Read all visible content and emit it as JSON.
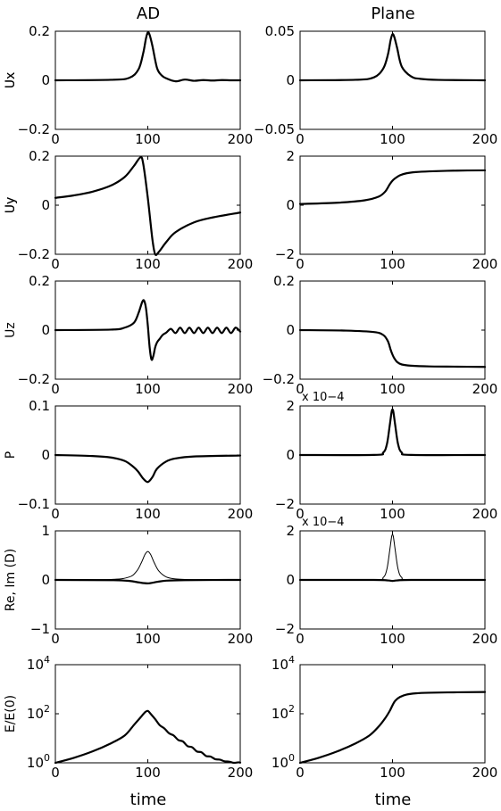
{
  "columns": [
    "AD",
    "Plane"
  ],
  "xlabel": "time",
  "chart_data": [
    {
      "type": "line",
      "panel": "AD",
      "ylabel": "Ux",
      "xlim": [
        0,
        200
      ],
      "ylim": [
        -0.2,
        0.2
      ],
      "xticks": [
        "0",
        "100",
        "200"
      ],
      "yticks": [
        "0.2",
        "0",
        "−0.2"
      ],
      "series": [
        {
          "x": [
            0,
            60,
            80,
            90,
            95,
            98,
            100,
            102,
            105,
            110,
            115,
            120,
            130,
            140,
            150,
            160,
            170,
            180,
            190,
            200
          ],
          "y": [
            0,
            0.002,
            0.01,
            0.045,
            0.11,
            0.17,
            0.195,
            0.185,
            0.14,
            0.05,
            0.02,
            0.008,
            -0.004,
            0.003,
            -0.002,
            0.001,
            -0.001,
            0.001,
            0,
            0
          ]
        }
      ]
    },
    {
      "type": "line",
      "panel": "Plane",
      "ylabel": "Ux",
      "xlim": [
        0,
        200
      ],
      "ylim": [
        -0.05,
        0.05
      ],
      "xticks": [
        "0",
        "100",
        "200"
      ],
      "yticks": [
        "0.05",
        "0",
        "−0.05"
      ],
      "series": [
        {
          "x": [
            0,
            60,
            80,
            90,
            95,
            98,
            100,
            102,
            105,
            110,
            120,
            130,
            150,
            200
          ],
          "y": [
            0,
            0.0005,
            0.003,
            0.012,
            0.026,
            0.041,
            0.047,
            0.044,
            0.033,
            0.014,
            0.004,
            0.0015,
            0.0004,
            0
          ]
        }
      ]
    },
    {
      "type": "line",
      "panel": "AD",
      "ylabel": "Uy",
      "xlim": [
        0,
        200
      ],
      "ylim": [
        -0.2,
        0.2
      ],
      "xticks": [
        "0",
        "100",
        "200"
      ],
      "yticks": [
        "0.2",
        "0",
        "−0.2"
      ],
      "series": [
        {
          "x": [
            0,
            20,
            40,
            60,
            75,
            85,
            92,
            95,
            100,
            105,
            108,
            112,
            120,
            130,
            150,
            170,
            200
          ],
          "y": [
            0.03,
            0.04,
            0.055,
            0.08,
            0.115,
            0.16,
            0.195,
            0.17,
            0.03,
            -0.14,
            -0.2,
            -0.19,
            -0.15,
            -0.11,
            -0.07,
            -0.05,
            -0.03
          ]
        }
      ]
    },
    {
      "type": "line",
      "panel": "Plane",
      "ylabel": "Uy",
      "xlim": [
        0,
        200
      ],
      "ylim": [
        -2,
        2
      ],
      "xticks": [
        "0",
        "100",
        "200"
      ],
      "yticks": [
        "2",
        "0",
        "−2"
      ],
      "series": [
        {
          "x": [
            0,
            40,
            70,
            85,
            92,
            97,
            100,
            103,
            108,
            115,
            125,
            140,
            170,
            200
          ],
          "y": [
            0.05,
            0.1,
            0.2,
            0.35,
            0.55,
            0.85,
            1.0,
            1.1,
            1.22,
            1.3,
            1.35,
            1.38,
            1.41,
            1.42
          ]
        }
      ]
    },
    {
      "type": "line",
      "panel": "AD",
      "ylabel": "Uz",
      "xlim": [
        0,
        200
      ],
      "ylim": [
        -0.2,
        0.2
      ],
      "xticks": [
        "0",
        "100",
        "200"
      ],
      "yticks": [
        "0.2",
        "0",
        "−0.2"
      ],
      "series": [
        {
          "x": [
            0,
            60,
            75,
            85,
            90,
            94,
            96,
            98,
            100,
            102,
            104,
            106,
            108,
            110,
            113,
            116,
            120,
            125,
            130,
            135,
            140,
            145,
            150,
            155,
            160,
            165,
            170,
            175,
            180,
            185,
            190,
            195,
            200
          ],
          "y": [
            0,
            0.002,
            0.01,
            0.03,
            0.07,
            0.115,
            0.12,
            0.09,
            0.02,
            -0.07,
            -0.12,
            -0.105,
            -0.07,
            -0.05,
            -0.035,
            -0.02,
            -0.01,
            0.005,
            -0.012,
            0.01,
            -0.012,
            0.01,
            -0.012,
            0.01,
            -0.012,
            0.01,
            -0.012,
            0.01,
            -0.012,
            0.01,
            -0.012,
            0.01,
            -0.006
          ]
        }
      ]
    },
    {
      "type": "line",
      "panel": "Plane",
      "ylabel": "",
      "xlim": [
        0,
        200
      ],
      "ylim": [
        -0.2,
        0.2
      ],
      "xticks": [
        "0",
        "100",
        "200"
      ],
      "yticks": [
        "0.2",
        "0",
        "−0.2"
      ],
      "series": [
        {
          "x": [
            0,
            50,
            80,
            90,
            95,
            98,
            100,
            102,
            105,
            110,
            120,
            140,
            170,
            200
          ],
          "y": [
            0,
            -0.002,
            -0.008,
            -0.02,
            -0.045,
            -0.08,
            -0.1,
            -0.115,
            -0.13,
            -0.14,
            -0.145,
            -0.148,
            -0.149,
            -0.15
          ]
        }
      ]
    },
    {
      "type": "line",
      "panel": "AD",
      "ylabel": "P",
      "xlim": [
        0,
        200
      ],
      "ylim": [
        -0.1,
        0.1
      ],
      "xticks": [
        "0",
        "100",
        "200"
      ],
      "yticks": [
        "0.1",
        "0",
        "−0.1"
      ],
      "series": [
        {
          "x": [
            0,
            40,
            60,
            75,
            85,
            90,
            95,
            100,
            105,
            110,
            120,
            130,
            150,
            200
          ],
          "y": [
            0,
            -0.002,
            -0.005,
            -0.012,
            -0.025,
            -0.035,
            -0.048,
            -0.055,
            -0.045,
            -0.028,
            -0.013,
            -0.007,
            -0.003,
            -0.001
          ]
        }
      ]
    },
    {
      "type": "line",
      "panel": "Plane",
      "ylabel": "",
      "multiplier": "x 10−4",
      "xlim": [
        0,
        200
      ],
      "ylim": [
        -2,
        2
      ],
      "xticks": [
        "0",
        "100",
        "200"
      ],
      "yticks": [
        "2",
        "0",
        "−2"
      ],
      "series": [
        {
          "x": [
            0,
            80,
            90,
            94,
            97,
            99,
            100,
            101,
            103,
            106,
            110,
            120,
            200
          ],
          "y": [
            0,
            0.005,
            0.1,
            0.45,
            1.2,
            1.75,
            1.85,
            1.75,
            1.2,
            0.45,
            0.1,
            0.005,
            0
          ]
        }
      ]
    },
    {
      "type": "line",
      "panel": "AD",
      "ylabel": "Re, Im (D)",
      "xlim": [
        0,
        200
      ],
      "ylim": [
        -1,
        1
      ],
      "xticks": [
        "0",
        "100",
        "200"
      ],
      "yticks": [
        "1",
        "0",
        "−1"
      ],
      "series": [
        {
          "x": [
            0,
            60,
            80,
            88,
            93,
            97,
            100,
            103,
            107,
            112,
            120,
            130,
            150,
            200
          ],
          "y": [
            0,
            0.01,
            0.06,
            0.18,
            0.35,
            0.52,
            0.58,
            0.52,
            0.35,
            0.18,
            0.06,
            0.02,
            0.005,
            0
          ]
        },
        {
          "x": [
            0,
            60,
            80,
            90,
            100,
            110,
            120,
            140,
            200
          ],
          "y": [
            0,
            -0.005,
            -0.02,
            -0.05,
            -0.07,
            -0.04,
            -0.015,
            -0.004,
            0
          ]
        }
      ]
    },
    {
      "type": "line",
      "panel": "Plane",
      "ylabel": "",
      "multiplier": "x 10−4",
      "xlim": [
        0,
        200
      ],
      "ylim": [
        -2,
        2
      ],
      "xticks": [
        "0",
        "100",
        "200"
      ],
      "yticks": [
        "2",
        "0",
        "−2"
      ],
      "series": [
        {
          "x": [
            0,
            80,
            90,
            94,
            97,
            99,
            100,
            101,
            103,
            106,
            110,
            120,
            200
          ],
          "y": [
            0,
            0.005,
            0.1,
            0.45,
            1.2,
            1.75,
            1.85,
            1.75,
            1.2,
            0.45,
            0.1,
            0.005,
            0
          ]
        },
        {
          "x": [
            0,
            80,
            95,
            100,
            105,
            120,
            200
          ],
          "y": [
            0,
            0,
            -0.02,
            -0.04,
            -0.02,
            0,
            0
          ]
        }
      ]
    },
    {
      "type": "line",
      "panel": "AD",
      "ylabel": "E/E(0)",
      "yscale": "log",
      "xlim": [
        0,
        200
      ],
      "ylim": [
        1,
        10000
      ],
      "xticks": [
        "0",
        "100",
        "200"
      ],
      "yticks": [
        {
          "base": "10",
          "exp": "4"
        },
        {
          "base": "10",
          "exp": "2"
        },
        {
          "base": "10",
          "exp": "0"
        }
      ],
      "series": [
        {
          "x": [
            0,
            20,
            40,
            60,
            75,
            85,
            92,
            97,
            100,
            103,
            108,
            113,
            118,
            123,
            128,
            133,
            138,
            143,
            148,
            153,
            158,
            163,
            168,
            173,
            178,
            183,
            188,
            193,
            198,
            200
          ],
          "y": [
            1,
            1.6,
            2.9,
            6.2,
            13,
            35,
            70,
            115,
            130,
            100,
            60,
            34,
            25,
            16,
            13,
            8.5,
            7.4,
            4.8,
            4.3,
            2.9,
            2.7,
            1.9,
            1.8,
            1.4,
            1.35,
            1.15,
            1.12,
            1.0,
            1.05,
            1.02
          ]
        }
      ]
    },
    {
      "type": "line",
      "panel": "Plane",
      "ylabel": "",
      "yscale": "log",
      "xlim": [
        0,
        200
      ],
      "ylim": [
        1,
        10000
      ],
      "xticks": [
        "0",
        "100",
        "200"
      ],
      "yticks": [
        {
          "base": "10",
          "exp": "4"
        },
        {
          "base": "10",
          "exp": "2"
        },
        {
          "base": "10",
          "exp": "0"
        }
      ],
      "series": [
        {
          "x": [
            0,
            20,
            40,
            60,
            75,
            85,
            92,
            97,
            100,
            103,
            108,
            115,
            125,
            140,
            170,
            200
          ],
          "y": [
            1,
            1.6,
            2.9,
            6.2,
            13,
            30,
            65,
            130,
            220,
            340,
            480,
            600,
            680,
            720,
            750,
            770
          ]
        }
      ]
    }
  ]
}
